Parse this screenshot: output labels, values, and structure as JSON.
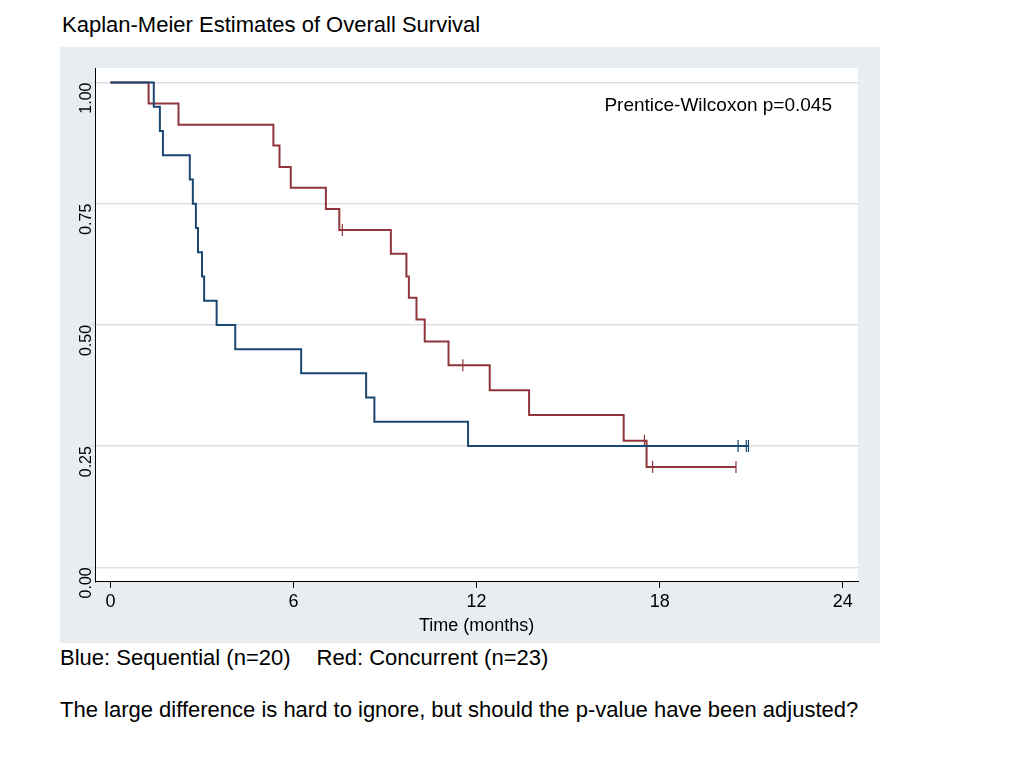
{
  "chart_data": {
    "type": "line",
    "title": "Kaplan-Meier Estimates of Overall Survival",
    "xlabel": "Time (months)",
    "annotation": "Prentice-Wilcoxon p=0.045",
    "caption": "The large difference is hard to ignore, but should the p-value have been adjusted?",
    "line_style": "step",
    "grid": true,
    "xlim": [
      -0.5,
      24.5
    ],
    "xticks": [
      0,
      6,
      12,
      18,
      24
    ],
    "ylim": [
      -0.03,
      1.03
    ],
    "yticks": [
      {
        "value": 0,
        "label": "0.00"
      },
      {
        "value": 0.25,
        "label": "0.25"
      },
      {
        "value": 0.5,
        "label": "0.50"
      },
      {
        "value": 0.75,
        "label": "0.75"
      },
      {
        "value": 1,
        "label": "1.00"
      }
    ],
    "series": [
      {
        "name": "Blue:  Sequential (n=20)",
        "color": "#1a476f",
        "x": [
          0,
          1.42,
          1.62,
          1.72,
          2.6,
          2.7,
          2.8,
          2.87,
          3.0,
          3.07,
          3.48,
          4.09,
          6.25,
          8.38,
          8.65,
          11.72,
          20.91
        ],
        "values": [
          1,
          0.95,
          0.9,
          0.85,
          0.8,
          0.75,
          0.7,
          0.65,
          0.6,
          0.55,
          0.5,
          0.45,
          0.4,
          0.35,
          0.3,
          0.25,
          0.25
        ],
        "censored": {
          "x": [
            20.57,
            20.84,
            20.91
          ],
          "y": [
            0.25,
            0.25,
            0.25
          ]
        }
      },
      {
        "name": "Red:  Concurrent (n=23)",
        "color": "#90353b",
        "x": [
          0,
          1.25,
          2.23,
          5.34,
          5.54,
          5.91,
          7.06,
          7.5,
          9.19,
          9.7,
          9.78,
          10.03,
          10.3,
          11.08,
          12.43,
          13.72,
          16.82,
          17.57,
          20.5
        ],
        "values": [
          1,
          0.957,
          0.913,
          0.87,
          0.826,
          0.783,
          0.739,
          0.696,
          0.647,
          0.6,
          0.556,
          0.511,
          0.466,
          0.417,
          0.365,
          0.314,
          0.261,
          0.207,
          0.207
        ],
        "censored": {
          "x": [
            7.6,
            11.55,
            17.5,
            17.77,
            20.5
          ],
          "y": [
            0.696,
            0.417,
            0.261,
            0.207,
            0.207
          ]
        }
      }
    ]
  }
}
